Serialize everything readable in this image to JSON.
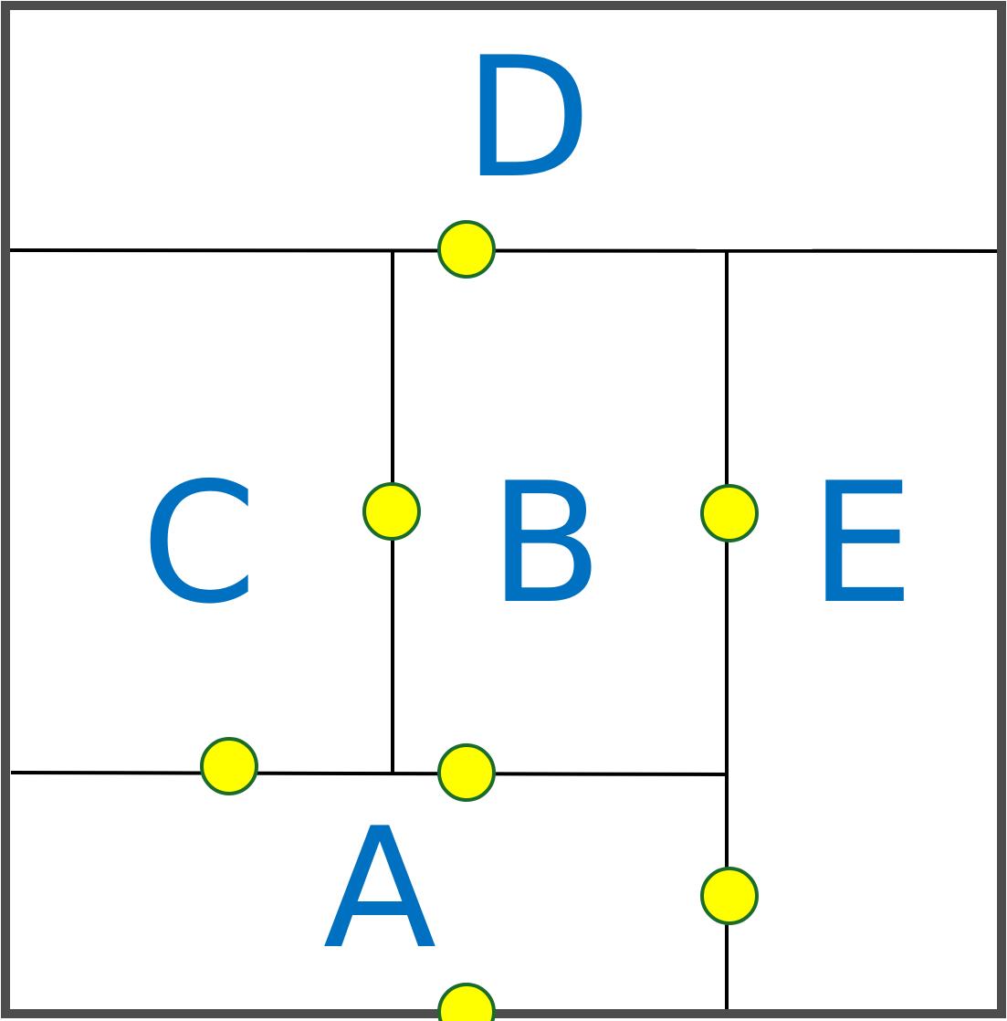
{
  "diagram": {
    "regions": [
      {
        "id": "region-d",
        "label": "D"
      },
      {
        "id": "region-c",
        "label": "C"
      },
      {
        "id": "region-b",
        "label": "B"
      },
      {
        "id": "region-e",
        "label": "E"
      },
      {
        "id": "region-a",
        "label": "A"
      }
    ],
    "colors": {
      "label": "#0070C0",
      "divider": "#000000",
      "frame": "#4D4D4D",
      "node_fill": "#FFFF00",
      "node_stroke": "#1B6B2A",
      "background": "#FFFFFF"
    },
    "connection_points": [
      {
        "between": [
          "D",
          "B"
        ]
      },
      {
        "between": [
          "C",
          "B"
        ]
      },
      {
        "between": [
          "B",
          "E"
        ]
      },
      {
        "between": [
          "C",
          "A"
        ]
      },
      {
        "between": [
          "B",
          "A"
        ]
      },
      {
        "between": [
          "A",
          "E"
        ]
      },
      {
        "between": [
          "A",
          "outside"
        ]
      }
    ]
  }
}
